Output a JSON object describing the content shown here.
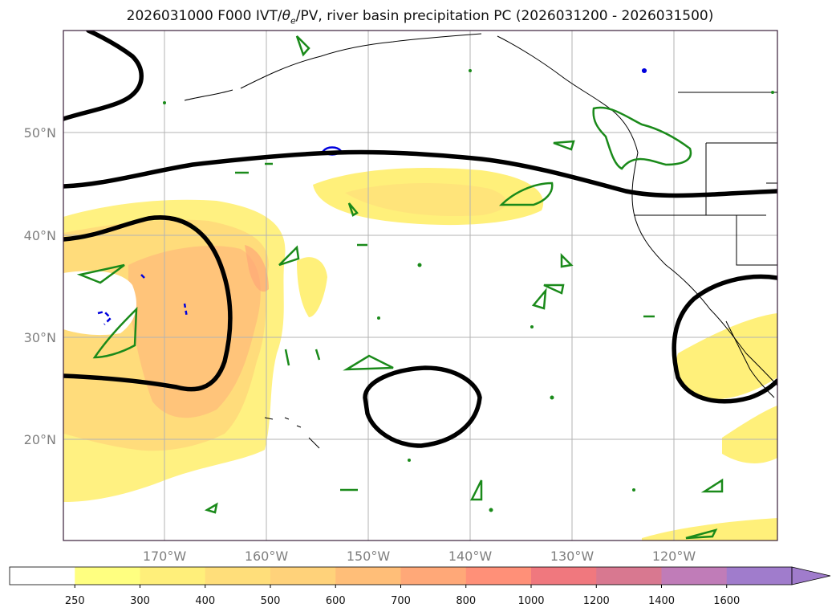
{
  "title": {
    "prefix": "2026031000 F000 IVT/",
    "theta": "θ",
    "theta_sub": "e",
    "suffix": "/PV, river basin precipitation PC (2026031200 - 2026031500)"
  },
  "map": {
    "lat_labels": [
      "50°N",
      "40°N",
      "30°N",
      "20°N"
    ],
    "lon_labels": [
      "170°W",
      "160°W",
      "150°W",
      "140°W",
      "130°W",
      "120°W"
    ],
    "grid": true,
    "contours": {
      "black_thick": "PV/theta_e contour",
      "green": "precipitation PC",
      "blue_dashed": "negative contour"
    }
  },
  "colorbar": {
    "labels": [
      "250",
      "300",
      "400",
      "500",
      "600",
      "700",
      "800",
      "1000",
      "1200",
      "1400",
      "1600"
    ],
    "colors": [
      "#ffffff",
      "#ffff80",
      "#ffef7a",
      "#ffde7a",
      "#ffd27a",
      "#ffbe78",
      "#ffa878",
      "#ff9078",
      "#f0787e",
      "#d87890",
      "#c07cb8",
      "#a07ccc"
    ],
    "extend": "max"
  }
}
